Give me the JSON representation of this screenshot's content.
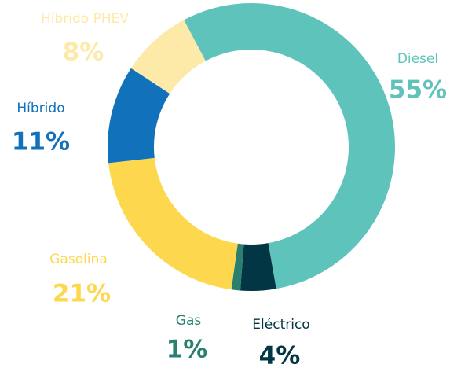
{
  "chart_data": {
    "type": "donut",
    "categories": [
      "Diesel",
      "Eléctrico",
      "Gas",
      "Gasolina",
      "Híbrido",
      "Híbrido PHEV"
    ],
    "values": [
      55,
      4,
      1,
      21,
      11,
      8
    ],
    "value_labels": [
      "55%",
      "4%",
      "1%",
      "21%",
      "11%",
      "8%"
    ],
    "colors": [
      "#5ec4bb",
      "#023645",
      "#2a7f6f",
      "#fdd84f",
      "#1172bb",
      "#fde9a8"
    ]
  }
}
